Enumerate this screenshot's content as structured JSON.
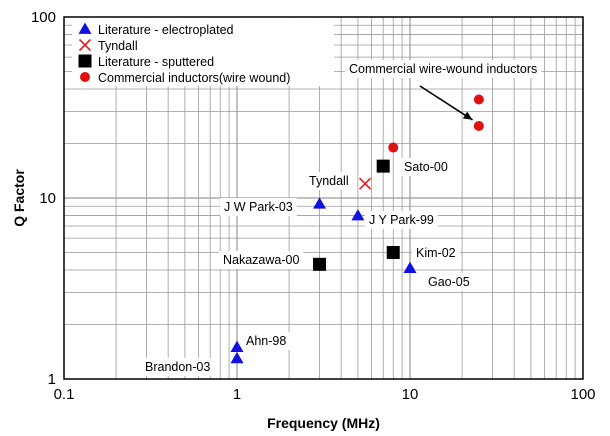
{
  "chart_data": {
    "type": "scatter",
    "title": "",
    "xlabel": "Frequency (MHz)",
    "ylabel": "Q Factor",
    "xscale": "log",
    "yscale": "log",
    "xlim": [
      0.1,
      100
    ],
    "ylim": [
      1,
      100
    ],
    "grid": true,
    "x_tick_labels": [
      "0.1",
      "1",
      "10",
      "100"
    ],
    "y_tick_labels": [
      "1",
      "10",
      "100"
    ],
    "legend_placement": "top-left",
    "series": [
      {
        "name": "Literature - electroplated",
        "marker": "triangle",
        "color": "#1010e0",
        "points": [
          {
            "x": 3,
            "y": 9.3
          },
          {
            "x": 5,
            "y": 8.0
          },
          {
            "x": 10,
            "y": 4.1
          },
          {
            "x": 1,
            "y": 1.5
          },
          {
            "x": 1,
            "y": 1.3
          }
        ]
      },
      {
        "name": "Tyndall",
        "marker": "cross",
        "color": "#e02020",
        "points": [
          {
            "x": 5.5,
            "y": 12.0
          }
        ]
      },
      {
        "name": "Literature - sputtered",
        "marker": "square",
        "color": "#000000",
        "points": [
          {
            "x": 7,
            "y": 15.0
          },
          {
            "x": 3,
            "y": 4.3
          },
          {
            "x": 8,
            "y": 5.0
          }
        ]
      },
      {
        "name": "Commercial inductors(wire wound)",
        "marker": "circle",
        "color": "#e01010",
        "points": [
          {
            "x": 8,
            "y": 19.0
          },
          {
            "x": 25,
            "y": 35.0
          },
          {
            "x": 25,
            "y": 25.0
          }
        ]
      }
    ],
    "annotations": [
      {
        "text": "Sato-00"
      },
      {
        "text": "Tyndall"
      },
      {
        "text": "J W Park-03"
      },
      {
        "text": "J Y Park-99"
      },
      {
        "text": "Nakazawa-00"
      },
      {
        "text": "Kim-02"
      },
      {
        "text": "Gao-05"
      },
      {
        "text": "Ahn-98"
      },
      {
        "text": "Brandon-03"
      },
      {
        "text": "Commercial wire-wound inductors"
      }
    ]
  }
}
